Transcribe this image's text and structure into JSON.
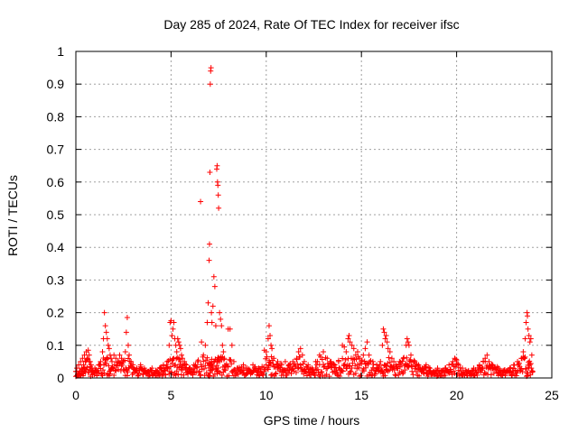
{
  "chart_data": {
    "type": "scatter",
    "title": "Day 285 of 2024, Rate Of TEC Index for receiver ifsc",
    "xlabel": "GPS time / hours",
    "ylabel": "ROTI / TECUs",
    "xlim": [
      0,
      25
    ],
    "ylim": [
      0,
      1
    ],
    "xticks": [
      "0",
      "5",
      "10",
      "15",
      "20",
      "25"
    ],
    "yticks": [
      "0",
      "0.1",
      "0.2",
      "0.3",
      "0.4",
      "0.5",
      "0.6",
      "0.7",
      "0.8",
      "0.9",
      "1"
    ],
    "grid": true,
    "marker": "+",
    "color": "#ff0000",
    "series": [
      {
        "points": [
          [
            0.0,
            0.02
          ],
          [
            0.05,
            0.03
          ],
          [
            0.1,
            0.01
          ],
          [
            0.15,
            0.04
          ],
          [
            0.2,
            0.02
          ],
          [
            0.25,
            0.05
          ],
          [
            0.3,
            0.03
          ],
          [
            0.35,
            0.06
          ],
          [
            0.4,
            0.04
          ],
          [
            0.45,
            0.07
          ],
          [
            0.5,
            0.05
          ],
          [
            0.55,
            0.08
          ],
          [
            0.6,
            0.06
          ],
          [
            0.65,
            0.085
          ],
          [
            0.7,
            0.07
          ],
          [
            0.75,
            0.05
          ],
          [
            0.8,
            0.04
          ],
          [
            0.85,
            0.03
          ],
          [
            0.9,
            0.02
          ],
          [
            1.0,
            0.03
          ],
          [
            1.1,
            0.02
          ],
          [
            1.2,
            0.04
          ],
          [
            1.3,
            0.05
          ],
          [
            1.4,
            0.08
          ],
          [
            1.45,
            0.12
          ],
          [
            1.5,
            0.2
          ],
          [
            1.55,
            0.16
          ],
          [
            1.6,
            0.14
          ],
          [
            1.65,
            0.12
          ],
          [
            1.7,
            0.1
          ],
          [
            1.75,
            0.09
          ],
          [
            1.8,
            0.07
          ],
          [
            1.85,
            0.06
          ],
          [
            1.9,
            0.05
          ],
          [
            2.0,
            0.07
          ],
          [
            2.1,
            0.06
          ],
          [
            2.2,
            0.05
          ],
          [
            2.3,
            0.07
          ],
          [
            2.4,
            0.06
          ],
          [
            2.5,
            0.05
          ],
          [
            2.6,
            0.08
          ],
          [
            2.65,
            0.14
          ],
          [
            2.7,
            0.185
          ],
          [
            2.75,
            0.1
          ],
          [
            2.8,
            0.07
          ],
          [
            2.9,
            0.05
          ],
          [
            3.0,
            0.04
          ],
          [
            3.2,
            0.03
          ],
          [
            3.4,
            0.04
          ],
          [
            3.6,
            0.03
          ],
          [
            3.8,
            0.02
          ],
          [
            4.0,
            0.03
          ],
          [
            4.2,
            0.02
          ],
          [
            4.4,
            0.03
          ],
          [
            4.6,
            0.04
          ],
          [
            4.8,
            0.05
          ],
          [
            4.9,
            0.1
          ],
          [
            4.95,
            0.17
          ],
          [
            5.0,
            0.175
          ],
          [
            5.05,
            0.13
          ],
          [
            5.1,
            0.15
          ],
          [
            5.15,
            0.17
          ],
          [
            5.2,
            0.12
          ],
          [
            5.25,
            0.1
          ],
          [
            5.3,
            0.08
          ],
          [
            5.35,
            0.12
          ],
          [
            5.4,
            0.11
          ],
          [
            5.45,
            0.1
          ],
          [
            5.5,
            0.09
          ],
          [
            5.55,
            0.07
          ],
          [
            5.6,
            0.06
          ],
          [
            5.7,
            0.05
          ],
          [
            5.8,
            0.04
          ],
          [
            6.0,
            0.03
          ],
          [
            6.2,
            0.04
          ],
          [
            6.4,
            0.05
          ],
          [
            6.55,
            0.54
          ],
          [
            6.6,
            0.11
          ],
          [
            6.7,
            0.07
          ],
          [
            6.8,
            0.1
          ],
          [
            6.9,
            0.17
          ],
          [
            6.95,
            0.23
          ],
          [
            7.0,
            0.36
          ],
          [
            7.02,
            0.41
          ],
          [
            7.04,
            0.63
          ],
          [
            7.06,
            0.9
          ],
          [
            7.08,
            0.94
          ],
          [
            7.1,
            0.95
          ],
          [
            7.12,
            0.2
          ],
          [
            7.15,
            0.17
          ],
          [
            7.2,
            0.22
          ],
          [
            7.25,
            0.31
          ],
          [
            7.3,
            0.28
          ],
          [
            7.35,
            0.16
          ],
          [
            7.4,
            0.64
          ],
          [
            7.42,
            0.65
          ],
          [
            7.44,
            0.6
          ],
          [
            7.46,
            0.59
          ],
          [
            7.48,
            0.56
          ],
          [
            7.5,
            0.52
          ],
          [
            7.55,
            0.2
          ],
          [
            7.6,
            0.18
          ],
          [
            7.65,
            0.16
          ],
          [
            7.7,
            0.1
          ],
          [
            7.75,
            0.08
          ],
          [
            7.8,
            0.06
          ],
          [
            8.0,
            0.15
          ],
          [
            8.1,
            0.15
          ],
          [
            8.2,
            0.1
          ],
          [
            8.3,
            0.05
          ],
          [
            8.5,
            0.03
          ],
          [
            8.8,
            0.04
          ],
          [
            9.0,
            0.03
          ],
          [
            9.3,
            0.04
          ],
          [
            9.6,
            0.03
          ],
          [
            9.9,
            0.085
          ],
          [
            10.0,
            0.08
          ],
          [
            10.1,
            0.12
          ],
          [
            10.15,
            0.16
          ],
          [
            10.2,
            0.13
          ],
          [
            10.25,
            0.1
          ],
          [
            10.3,
            0.09
          ],
          [
            10.4,
            0.06
          ],
          [
            10.6,
            0.05
          ],
          [
            10.8,
            0.04
          ],
          [
            11.0,
            0.05
          ],
          [
            11.2,
            0.04
          ],
          [
            11.4,
            0.05
          ],
          [
            11.6,
            0.06
          ],
          [
            11.7,
            0.08
          ],
          [
            11.8,
            0.09
          ],
          [
            11.9,
            0.07
          ],
          [
            12.0,
            0.05
          ],
          [
            12.2,
            0.04
          ],
          [
            12.4,
            0.03
          ],
          [
            12.6,
            0.05
          ],
          [
            12.8,
            0.07
          ],
          [
            13.0,
            0.08
          ],
          [
            13.2,
            0.06
          ],
          [
            13.4,
            0.05
          ],
          [
            13.6,
            0.04
          ],
          [
            13.8,
            0.05
          ],
          [
            14.0,
            0.1
          ],
          [
            14.1,
            0.095
          ],
          [
            14.2,
            0.08
          ],
          [
            14.3,
            0.12
          ],
          [
            14.35,
            0.13
          ],
          [
            14.4,
            0.11
          ],
          [
            14.5,
            0.1
          ],
          [
            14.6,
            0.09
          ],
          [
            14.7,
            0.07
          ],
          [
            14.8,
            0.08
          ],
          [
            14.9,
            0.06
          ],
          [
            15.0,
            0.05
          ],
          [
            15.1,
            0.07
          ],
          [
            15.2,
            0.09
          ],
          [
            15.3,
            0.11
          ],
          [
            15.4,
            0.07
          ],
          [
            15.6,
            0.05
          ],
          [
            15.8,
            0.04
          ],
          [
            16.0,
            0.05
          ],
          [
            16.1,
            0.1
          ],
          [
            16.15,
            0.15
          ],
          [
            16.2,
            0.14
          ],
          [
            16.25,
            0.12
          ],
          [
            16.3,
            0.13
          ],
          [
            16.35,
            0.11
          ],
          [
            16.4,
            0.09
          ],
          [
            16.5,
            0.08
          ],
          [
            16.6,
            0.06
          ],
          [
            16.7,
            0.05
          ],
          [
            16.8,
            0.04
          ],
          [
            17.0,
            0.05
          ],
          [
            17.2,
            0.06
          ],
          [
            17.35,
            0.1
          ],
          [
            17.4,
            0.12
          ],
          [
            17.45,
            0.11
          ],
          [
            17.5,
            0.1
          ],
          [
            17.6,
            0.07
          ],
          [
            17.8,
            0.05
          ],
          [
            18.0,
            0.04
          ],
          [
            18.2,
            0.03
          ],
          [
            18.4,
            0.04
          ],
          [
            18.6,
            0.03
          ],
          [
            18.8,
            0.02
          ],
          [
            19.0,
            0.03
          ],
          [
            19.2,
            0.02
          ],
          [
            19.4,
            0.03
          ],
          [
            19.6,
            0.04
          ],
          [
            19.8,
            0.05
          ],
          [
            19.9,
            0.06
          ],
          [
            20.0,
            0.055
          ],
          [
            20.1,
            0.04
          ],
          [
            20.3,
            0.03
          ],
          [
            20.6,
            0.02
          ],
          [
            20.9,
            0.03
          ],
          [
            21.2,
            0.04
          ],
          [
            21.4,
            0.05
          ],
          [
            21.5,
            0.06
          ],
          [
            21.6,
            0.07
          ],
          [
            21.7,
            0.05
          ],
          [
            21.9,
            0.04
          ],
          [
            22.2,
            0.03
          ],
          [
            22.5,
            0.02
          ],
          [
            22.8,
            0.03
          ],
          [
            23.0,
            0.04
          ],
          [
            23.2,
            0.05
          ],
          [
            23.4,
            0.06
          ],
          [
            23.5,
            0.08
          ],
          [
            23.6,
            0.12
          ],
          [
            23.65,
            0.17
          ],
          [
            23.7,
            0.2
          ],
          [
            23.72,
            0.19
          ],
          [
            23.75,
            0.15
          ],
          [
            23.8,
            0.13
          ],
          [
            23.85,
            0.11
          ],
          [
            23.9,
            0.12
          ],
          [
            23.95,
            0.07
          ],
          [
            24.0,
            0.02
          ]
        ]
      }
    ]
  }
}
